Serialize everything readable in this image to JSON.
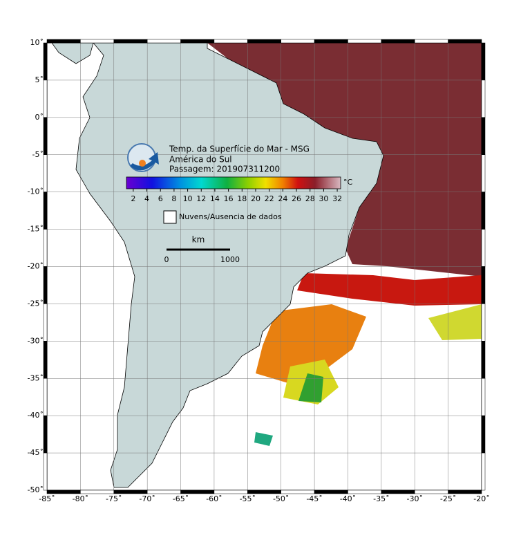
{
  "header": {
    "lines": [
      "Temp. da Superfície do Mar - MSG",
      "América do Sul",
      "Passagem: 201907311200"
    ]
  },
  "colorbar": {
    "unit": "°C",
    "range": [
      1,
      32.5
    ],
    "ticks": [
      2,
      4,
      6,
      8,
      10,
      12,
      14,
      16,
      18,
      20,
      22,
      24,
      26,
      28,
      30,
      32
    ]
  },
  "legend": {
    "label": "Nuvens/Ausencia de dados"
  },
  "scale_bar": {
    "unit": "km",
    "labels": [
      "0",
      "1000"
    ]
  },
  "map": {
    "lon_range": [
      -85,
      -20
    ],
    "lat_range": [
      -50,
      10
    ],
    "lon_ticks": [
      {
        "value": -85,
        "label": "-85˚"
      },
      {
        "value": -80,
        "label": "-80˚"
      },
      {
        "value": -75,
        "label": "-75˚"
      },
      {
        "value": -70,
        "label": "-70˚"
      },
      {
        "value": -65,
        "label": "-65˚"
      },
      {
        "value": -60,
        "label": "-60˚"
      },
      {
        "value": -55,
        "label": "-55˚"
      },
      {
        "value": -50,
        "label": "-50˚"
      },
      {
        "value": -45,
        "label": "-45˚"
      },
      {
        "value": -40,
        "label": "-40˚"
      },
      {
        "value": -35,
        "label": "-35˚"
      },
      {
        "value": -30,
        "label": "-30˚"
      },
      {
        "value": -25,
        "label": "-25˚"
      },
      {
        "value": -20,
        "label": "-20˚"
      }
    ],
    "lat_ticks": [
      {
        "value": 10,
        "label": "10˚"
      },
      {
        "value": 5,
        "label": "5˚"
      },
      {
        "value": 0,
        "label": "0˚"
      },
      {
        "value": -5,
        "label": "-5˚"
      },
      {
        "value": -10,
        "label": "-10˚"
      },
      {
        "value": -15,
        "label": "-15˚"
      },
      {
        "value": -20,
        "label": "-20˚"
      },
      {
        "value": -25,
        "label": "-25˚"
      },
      {
        "value": -30,
        "label": "-30˚"
      },
      {
        "value": -35,
        "label": "-35˚"
      },
      {
        "value": -40,
        "label": "-40˚"
      },
      {
        "value": -45,
        "label": "-45˚"
      },
      {
        "value": -50,
        "label": "-50˚"
      }
    ]
  }
}
